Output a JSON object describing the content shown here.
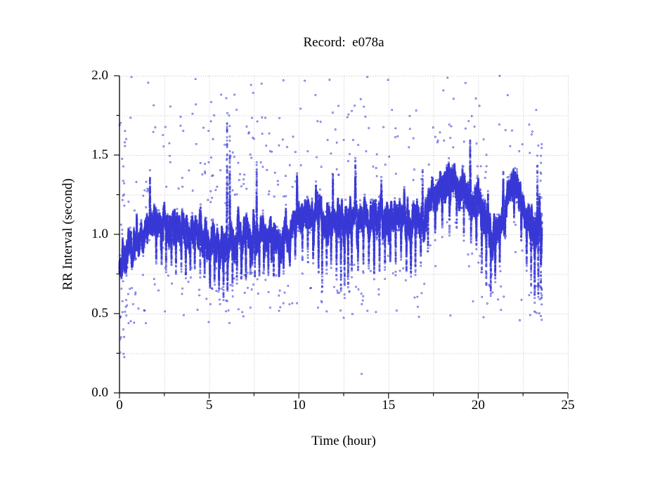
{
  "figure": {
    "background": "#ffffff"
  },
  "chart_data": {
    "type": "scatter",
    "title": "Record:  e078a",
    "xlabel": "Time (hour)",
    "ylabel": "RR Interval (second)",
    "xlim": [
      0,
      25
    ],
    "ylim": [
      0.0,
      2.0
    ],
    "x_major_ticks": [
      {
        "v": 0,
        "label": "0"
      },
      {
        "v": 5,
        "label": "5"
      },
      {
        "v": 10,
        "label": "10"
      },
      {
        "v": 15,
        "label": "15"
      },
      {
        "v": 20,
        "label": "20"
      },
      {
        "v": 25,
        "label": "25"
      }
    ],
    "x_minor_ticks": [
      2.5,
      7.5,
      12.5,
      17.5,
      22.5
    ],
    "y_major_ticks": [
      {
        "v": 0.0,
        "label": "0.0"
      },
      {
        "v": 0.5,
        "label": "0.5"
      },
      {
        "v": 1.0,
        "label": "1.0"
      },
      {
        "v": 1.5,
        "label": "1.5"
      },
      {
        "v": 2.0,
        "label": "2.0"
      }
    ],
    "y_minor_ticks": [
      0.25,
      0.75,
      1.25,
      1.75
    ],
    "grid": {
      "style": "dotted",
      "color": "#bcbcbc"
    },
    "axis_color": "#111111",
    "marker": {
      "shape": "open-circle",
      "color_rgba": "rgba(58,58,214,0.9)",
      "radius_px": 1.05
    },
    "data_end_hour": 23.55,
    "seed": 20240601,
    "sim": {
      "beats_per_hour": 3000,
      "wander_persist": 0.99,
      "wander_step": 0.26,
      "wander_clamp": 1.8,
      "jitter": 0.02
    },
    "band_profile": [
      [
        0.0,
        0.78,
        0.1
      ],
      [
        0.5,
        0.88,
        0.09
      ],
      [
        1.0,
        0.95,
        0.09
      ],
      [
        1.5,
        1.0,
        0.1
      ],
      [
        2.0,
        1.1,
        0.1
      ],
      [
        2.5,
        1.06,
        0.1
      ],
      [
        3.0,
        1.05,
        0.1
      ],
      [
        3.5,
        1.04,
        0.1
      ],
      [
        4.0,
        1.03,
        0.1
      ],
      [
        4.5,
        1.01,
        0.1
      ],
      [
        5.0,
        0.96,
        0.1
      ],
      [
        5.5,
        0.93,
        0.11
      ],
      [
        6.0,
        0.92,
        0.12
      ],
      [
        6.5,
        0.99,
        0.1
      ],
      [
        7.0,
        1.0,
        0.1
      ],
      [
        7.5,
        1.02,
        0.11
      ],
      [
        8.0,
        1.0,
        0.1
      ],
      [
        8.5,
        0.99,
        0.1
      ],
      [
        9.0,
        0.98,
        0.1
      ],
      [
        9.5,
        1.02,
        0.09
      ],
      [
        10.0,
        1.1,
        0.09
      ],
      [
        10.5,
        1.12,
        0.09
      ],
      [
        11.0,
        1.12,
        0.1
      ],
      [
        11.5,
        1.1,
        0.1
      ],
      [
        12.0,
        1.12,
        0.1
      ],
      [
        12.5,
        1.08,
        0.12
      ],
      [
        13.0,
        1.12,
        0.1
      ],
      [
        13.5,
        1.13,
        0.1
      ],
      [
        14.0,
        1.12,
        0.1
      ],
      [
        14.5,
        1.13,
        0.1
      ],
      [
        15.0,
        1.12,
        0.1
      ],
      [
        15.5,
        1.12,
        0.1
      ],
      [
        16.0,
        1.12,
        0.1
      ],
      [
        16.5,
        1.06,
        0.11
      ],
      [
        17.0,
        1.12,
        0.1
      ],
      [
        17.5,
        1.25,
        0.1
      ],
      [
        18.0,
        1.3,
        0.1
      ],
      [
        18.5,
        1.33,
        0.09
      ],
      [
        19.0,
        1.3,
        0.1
      ],
      [
        19.5,
        1.26,
        0.11
      ],
      [
        20.0,
        1.16,
        0.11
      ],
      [
        20.5,
        1.05,
        0.12
      ],
      [
        21.0,
        1.02,
        0.12
      ],
      [
        21.5,
        1.22,
        0.1
      ],
      [
        22.0,
        1.33,
        0.09
      ],
      [
        22.5,
        1.24,
        0.11
      ],
      [
        23.0,
        1.02,
        0.14
      ],
      [
        23.5,
        1.05,
        0.18
      ]
    ],
    "spike_halfwidth_hours": 0.022,
    "spikes": [
      [
        1.7,
        1.42
      ],
      [
        2.05,
        0.8
      ],
      [
        2.35,
        0.78
      ],
      [
        2.6,
        0.74
      ],
      [
        2.9,
        0.78
      ],
      [
        3.15,
        0.72
      ],
      [
        3.45,
        0.76
      ],
      [
        3.7,
        0.68
      ],
      [
        3.95,
        0.74
      ],
      [
        4.2,
        0.72
      ],
      [
        4.5,
        0.7
      ],
      [
        4.75,
        0.72
      ],
      [
        5.05,
        0.64
      ],
      [
        5.3,
        0.68
      ],
      [
        5.55,
        0.62
      ],
      [
        5.8,
        0.58
      ],
      [
        6.0,
        1.88
      ],
      [
        6.02,
        0.6
      ],
      [
        6.15,
        1.7
      ],
      [
        6.3,
        0.62
      ],
      [
        6.55,
        0.66
      ],
      [
        6.8,
        0.7
      ],
      [
        7.05,
        0.68
      ],
      [
        7.3,
        0.72
      ],
      [
        7.55,
        0.7
      ],
      [
        7.65,
        1.5
      ],
      [
        7.8,
        0.72
      ],
      [
        8.05,
        0.74
      ],
      [
        8.3,
        0.7
      ],
      [
        8.6,
        0.66
      ],
      [
        8.9,
        0.72
      ],
      [
        9.15,
        0.74
      ],
      [
        9.5,
        0.78
      ],
      [
        9.8,
        0.8
      ],
      [
        9.9,
        1.4
      ],
      [
        10.2,
        0.82
      ],
      [
        10.5,
        0.8
      ],
      [
        10.8,
        0.78
      ],
      [
        11.1,
        0.72
      ],
      [
        11.3,
        0.62
      ],
      [
        11.55,
        0.74
      ],
      [
        11.8,
        0.78
      ],
      [
        11.9,
        1.42
      ],
      [
        12.1,
        0.74
      ],
      [
        12.35,
        0.6
      ],
      [
        12.55,
        0.56
      ],
      [
        12.75,
        0.62
      ],
      [
        12.95,
        0.7
      ],
      [
        13.15,
        1.5
      ],
      [
        13.3,
        0.76
      ],
      [
        13.6,
        0.74
      ],
      [
        13.9,
        0.72
      ],
      [
        14.2,
        0.7
      ],
      [
        14.5,
        0.74
      ],
      [
        14.6,
        1.38
      ],
      [
        14.8,
        0.7
      ],
      [
        15.1,
        0.76
      ],
      [
        15.4,
        0.72
      ],
      [
        15.7,
        0.78
      ],
      [
        16.0,
        0.74
      ],
      [
        16.25,
        0.7
      ],
      [
        16.5,
        0.72
      ],
      [
        16.8,
        0.78
      ],
      [
        16.9,
        1.45
      ],
      [
        17.2,
        0.85
      ],
      [
        17.6,
        0.95
      ],
      [
        18.0,
        1.0
      ],
      [
        18.4,
        0.98
      ],
      [
        18.8,
        1.02
      ],
      [
        19.2,
        0.95
      ],
      [
        19.55,
        1.62
      ],
      [
        19.6,
        0.92
      ],
      [
        19.9,
        0.88
      ],
      [
        20.2,
        0.72
      ],
      [
        20.45,
        0.62
      ],
      [
        20.7,
        0.56
      ],
      [
        20.95,
        0.66
      ],
      [
        21.2,
        0.78
      ],
      [
        21.4,
        1.42
      ],
      [
        21.5,
        0.95
      ],
      [
        22.0,
        1.05
      ],
      [
        22.4,
        0.95
      ],
      [
        22.7,
        0.75
      ],
      [
        22.95,
        0.62
      ],
      [
        23.15,
        0.5
      ],
      [
        23.3,
        1.5
      ],
      [
        23.35,
        0.56
      ],
      [
        23.5,
        0.62
      ]
    ],
    "upper_outliers_per_hour": [
      8,
      10,
      8,
      7,
      14,
      18,
      20,
      17,
      14,
      11,
      6,
      8,
      12,
      11,
      7,
      6,
      8,
      6,
      8,
      10,
      7,
      6,
      5,
      6
    ],
    "lower_outliers_per_hour": [
      16,
      7,
      5,
      6,
      7,
      12,
      14,
      9,
      8,
      6,
      4,
      7,
      14,
      12,
      7,
      5,
      7,
      4,
      3,
      4,
      11,
      6,
      7,
      12
    ],
    "outlier_rr_floor": 0.44,
    "columns": [
      {
        "t0": 0.0,
        "t1": 0.3,
        "rr0": 0.22,
        "rr1": 1.9,
        "count": 28
      },
      {
        "t0": 23.38,
        "t1": 23.55,
        "rr0": 0.5,
        "rr1": 1.5,
        "count": 18
      }
    ],
    "special_points": [
      [
        13.5,
        0.12
      ]
    ]
  }
}
